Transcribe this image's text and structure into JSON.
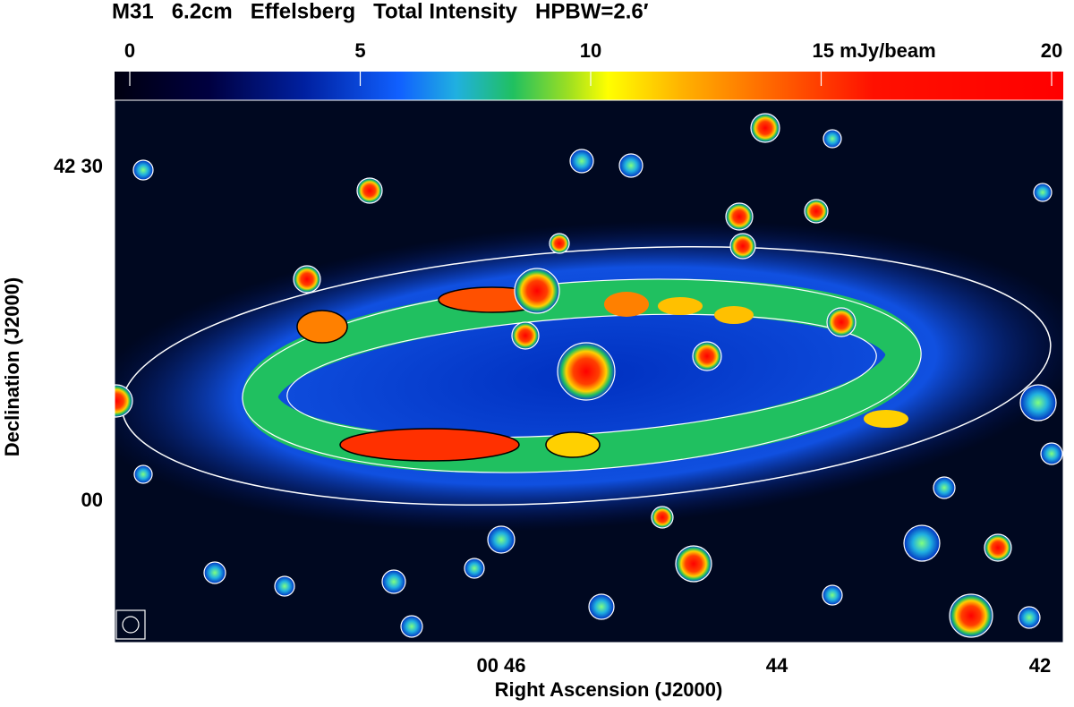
{
  "title": "M31   6.2cm   Effelsberg   Total Intensity   HPBW=2.6′",
  "colorbar": {
    "range": [
      0,
      20
    ],
    "ticks": [
      0,
      5,
      10,
      {
        "value": 15,
        "label": "15 mJy/beam"
      },
      20
    ]
  },
  "x_axis": {
    "label": "Right Ascension (J2000)",
    "ticks": [
      "00 46",
      "44",
      "42"
    ]
  },
  "y_axis": {
    "label": "Declination (J2000)",
    "ticks": [
      "42 30",
      "00"
    ]
  }
}
